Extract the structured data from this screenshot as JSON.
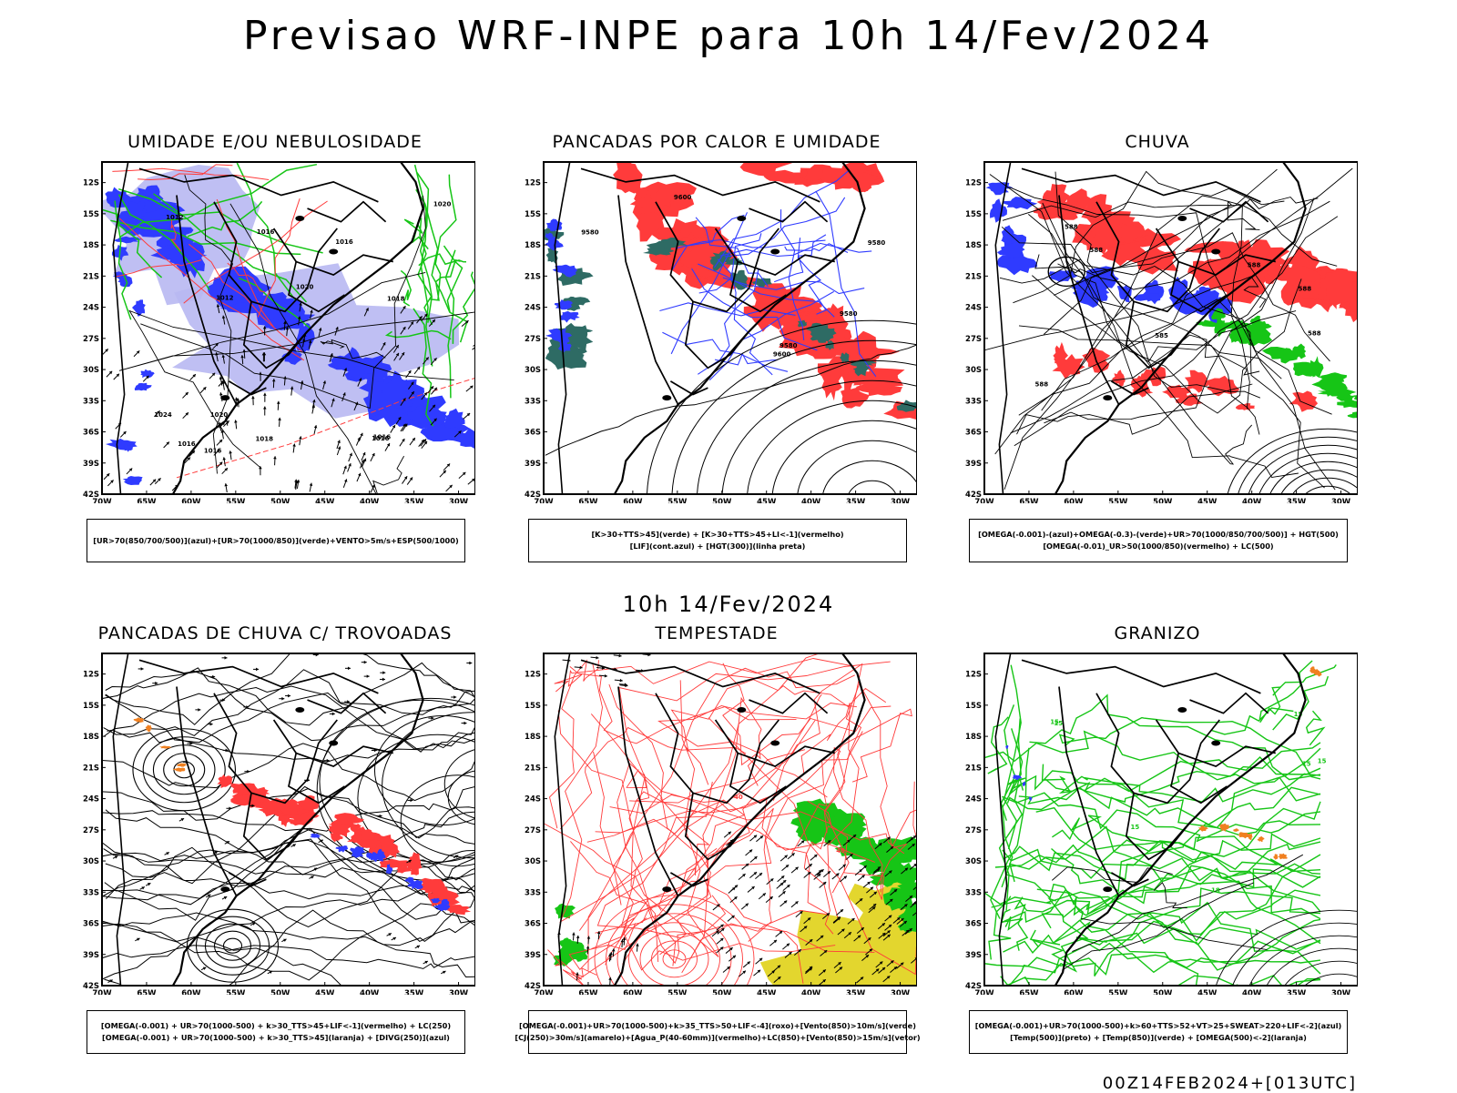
{
  "header": {
    "title": "Previsao WRF-INPE  para 10h 14/Fev/2024",
    "mid_title": "10h 14/Fev/2024",
    "footer": "00Z14FEB2024+[013UTC]"
  },
  "axes": {
    "lat_labels": [
      "12S",
      "15S",
      "18S",
      "21S",
      "24S",
      "27S",
      "30S",
      "33S",
      "36S",
      "39S",
      "42S"
    ],
    "lon_labels": [
      "70W",
      "65W",
      "60W",
      "55W",
      "50W",
      "45W",
      "40W",
      "35W",
      "30W"
    ]
  },
  "colors": {
    "red": "#ff3b3b",
    "blue": "#2f3bff",
    "green": "#16c516",
    "teal": "#2e6b64",
    "yellow": "#e3d62e",
    "orange": "#f08020",
    "lavender": "#b8b8f2"
  },
  "panels": [
    {
      "id": "umidade",
      "title": "UMIDADE E/OU NEBULOSIDADE",
      "legend": [
        "[UR>70(850/700/500)](azul)+[UR>70(1000/850)](verde)+VENTO>5m/s+ESP(500/1000)"
      ],
      "contour_labels": [
        "1016",
        "1016",
        "1020",
        "1016",
        "1018",
        "1016",
        "1020",
        "1018",
        "1024",
        "1012",
        "1016",
        "1020",
        "1016",
        "1012"
      ]
    },
    {
      "id": "pancadas",
      "title": "PANCADAS POR CALOR E UMIDADE",
      "legend": [
        "[K>30+TTS>45](verde) + [K>30+TTS>45+LI<-1](vermelho)",
        "[LIF](cont.azul) + [HGT(300)](linha preta)"
      ],
      "contour_labels": [
        "9580",
        "9580",
        "9580",
        "9580",
        "9600",
        "9600"
      ]
    },
    {
      "id": "chuva",
      "title": "CHUVA",
      "legend": [
        "[OMEGA(-0.001)-(azul)+OMEGA(-0.3)-(verde)+UR>70(1000/850/700/500)] + HGT(500)",
        "[OMEGA(-0.01)_UR>50(1000/850)(vermelho) + LC(500)"
      ],
      "contour_labels": [
        "588",
        "588",
        "588",
        "588",
        "588",
        "588",
        "585"
      ]
    },
    {
      "id": "trovoadas",
      "title": "PANCADAS DE CHUVA C/ TROVOADAS",
      "legend": [
        "[OMEGA(-0.001) + UR>70(1000-500) + k>30_TTS>45+LIF<-1](vermelho) + LC(250)",
        "[OMEGA(-0.001) + UR>70(1000-500) + k>30_TTS>45](laranja) + [DIVG(250)](azul)"
      ],
      "contour_labels": []
    },
    {
      "id": "tempestade",
      "title": "TEMPESTADE",
      "legend": [
        "[OMEGA(-0.001)+UR>70(1000-500)+k>35_TTS>50+LIF<-4](roxo)+[Vento(850)>10m/s](verde)",
        "[CJ(250)>30m/s](amarelo)+[Agua_P(40-60mm)](vermelho)+LC(850)+[Vento(850)>15m/s](vetor)"
      ],
      "contour_labels": [
        "40",
        "40"
      ]
    },
    {
      "id": "granizo",
      "title": "GRANIZO",
      "legend": [
        "[OMEGA(-0.001)+UR>70(1000-500)+k>60+TTS>52+VT>25+SWEAT>220+LIF<-2](azul)",
        "[Temp(500)](preto) + [Temp(850)](verde) + [OMEGA(500)<-2](laranja)"
      ],
      "contour_labels": [
        "15",
        "15",
        "15",
        "15",
        "15",
        "18",
        "15"
      ]
    }
  ]
}
